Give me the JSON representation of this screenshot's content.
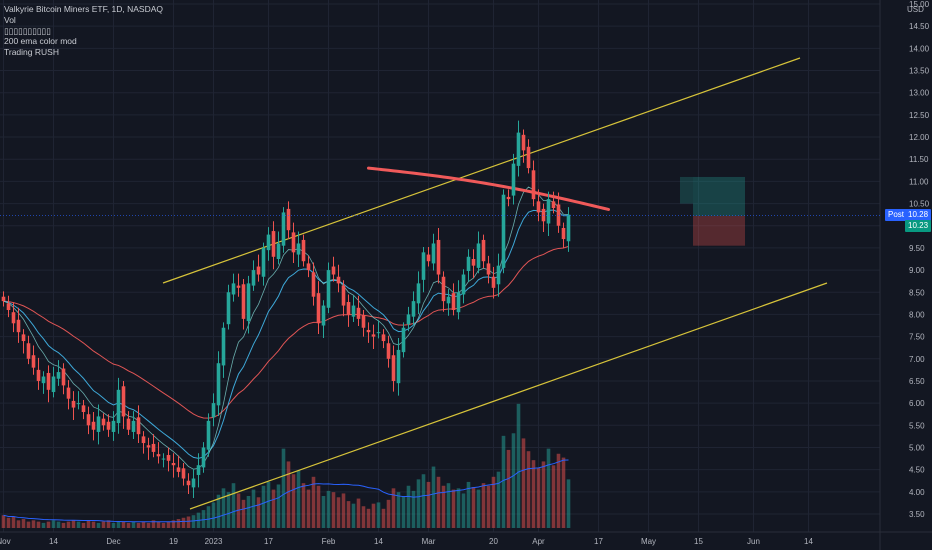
{
  "legend": {
    "title": "Valkyrie Bitcoin Miners ETF, 1D, NASDAQ",
    "lines": [
      "Vol",
      "▯▯▯▯▯▯▯▯▯▯",
      "200 ema color mod",
      "Trading RUSH"
    ]
  },
  "price_axis": {
    "currency": "USD",
    "ticks": [
      "15.00",
      "14.50",
      "14.00",
      "13.50",
      "13.00",
      "12.50",
      "12.00",
      "11.50",
      "11.00",
      "10.50",
      "10.00",
      "9.50",
      "9.00",
      "8.50",
      "8.00",
      "7.50",
      "7.00",
      "6.50",
      "6.00",
      "5.50",
      "5.00",
      "4.50",
      "4.00",
      "3.50"
    ]
  },
  "tags": {
    "post_label": "Post",
    "post_value": "10.28",
    "last_value": "10.23"
  },
  "colors": {
    "up": "#26a69a",
    "down": "#ef5350",
    "bg": "#131722",
    "grid": "#1f2433",
    "channel": "#d6c33a",
    "ema200": "#f05a5a",
    "ema_fast": "#3ea8d8",
    "ema_slow": "#e05555"
  },
  "chart_data": {
    "type": "candlestick",
    "title": "Valkyrie Bitcoin Miners ETF, 1D, NASDAQ",
    "ylim": [
      3.2,
      15.2
    ],
    "x_ticks": [
      "Nov",
      "14",
      "Dec",
      "19",
      "2023",
      "17",
      "Feb",
      "14",
      "Mar",
      "20",
      "Apr",
      "17",
      "May",
      "15",
      "Jun",
      "14"
    ],
    "x_tick_days": [
      0,
      10,
      22,
      34,
      42,
      53,
      65,
      75,
      85,
      98,
      107,
      119,
      129,
      139,
      150,
      161
    ],
    "series_close": [
      8.3,
      8.1,
      7.8,
      7.6,
      7.4,
      7.0,
      6.8,
      6.5,
      6.6,
      6.3,
      6.6,
      6.7,
      6.4,
      6.1,
      5.9,
      6.0,
      5.8,
      5.5,
      5.4,
      5.7,
      5.5,
      5.4,
      5.6,
      6.3,
      5.7,
      5.4,
      5.6,
      5.3,
      5.1,
      5.0,
      4.9,
      4.8,
      4.75,
      4.7,
      4.6,
      4.45,
      4.3,
      4.15,
      4.3,
      4.6,
      5.0,
      5.6,
      6.0,
      6.9,
      7.7,
      8.5,
      8.7,
      8.6,
      7.9,
      8.7,
      9.0,
      8.9,
      9.5,
      9.8,
      9.3,
      9.6,
      10.3,
      9.9,
      9.4,
      9.6,
      9.2,
      9.0,
      8.4,
      7.8,
      8.2,
      9.0,
      8.9,
      8.7,
      8.2,
      8.0,
      8.2,
      7.9,
      7.7,
      7.6,
      7.5,
      7.6,
      7.4,
      7.0,
      6.5,
      7.2,
      7.7,
      8.0,
      8.3,
      8.7,
      9.4,
      9.2,
      9.6,
      8.9,
      8.3,
      8.4,
      8.1,
      8.5,
      8.9,
      9.3,
      9.1,
      9.6,
      9.2,
      8.9,
      8.6,
      9.1,
      10.7,
      10.6,
      11.4,
      12.1,
      11.7,
      11.3,
      10.6,
      10.3,
      10.1,
      10.6,
      10.4,
      10.0,
      9.7,
      10.25
    ],
    "series_volume": [
      0.1,
      0.08,
      0.09,
      0.06,
      0.07,
      0.05,
      0.06,
      0.05,
      0.04,
      0.05,
      0.06,
      0.05,
      0.04,
      0.05,
      0.06,
      0.05,
      0.04,
      0.06,
      0.05,
      0.04,
      0.05,
      0.06,
      0.04,
      0.05,
      0.05,
      0.04,
      0.05,
      0.04,
      0.05,
      0.04,
      0.06,
      0.05,
      0.04,
      0.05,
      0.06,
      0.07,
      0.08,
      0.09,
      0.1,
      0.12,
      0.14,
      0.17,
      0.2,
      0.26,
      0.31,
      0.28,
      0.35,
      0.27,
      0.22,
      0.25,
      0.3,
      0.24,
      0.33,
      0.36,
      0.3,
      0.34,
      0.62,
      0.52,
      0.42,
      0.45,
      0.35,
      0.3,
      0.4,
      0.33,
      0.25,
      0.29,
      0.28,
      0.24,
      0.27,
      0.21,
      0.19,
      0.23,
      0.17,
      0.15,
      0.19,
      0.2,
      0.15,
      0.22,
      0.31,
      0.28,
      0.25,
      0.33,
      0.29,
      0.38,
      0.42,
      0.36,
      0.48,
      0.4,
      0.33,
      0.35,
      0.3,
      0.31,
      0.27,
      0.36,
      0.32,
      0.3,
      0.35,
      0.33,
      0.4,
      0.44,
      0.72,
      0.61,
      0.74,
      0.97,
      0.7,
      0.6,
      0.53,
      0.47,
      0.52,
      0.62,
      0.49,
      0.58,
      0.55,
      0.38
    ]
  }
}
